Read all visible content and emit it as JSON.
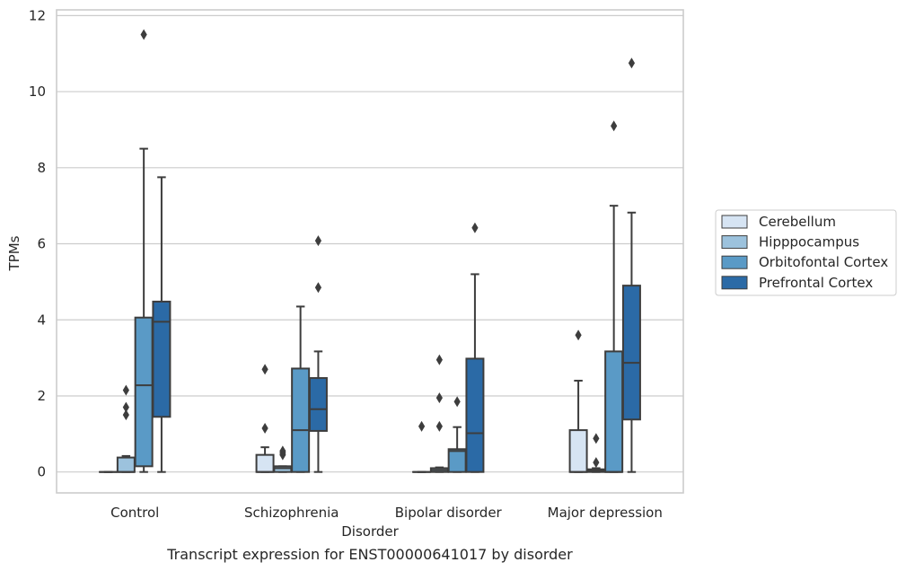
{
  "chart_data": {
    "type": "boxplot",
    "title": "",
    "caption": "Transcript expression for ENST00000641017 by disorder",
    "xlabel": "Disorder",
    "ylabel": "TPMs",
    "ylim": [
      -0.55,
      12.15
    ],
    "yticks": [
      0,
      2,
      4,
      6,
      8,
      10,
      12
    ],
    "grid": "horizontal",
    "legend_position": "right",
    "categories": [
      "Control",
      "Schizophrenia",
      "Bipolar disorder",
      "Major depression"
    ],
    "series": [
      {
        "name": "Cerebellum",
        "color": "#d6e4f3",
        "boxes": [
          {
            "q1": 0,
            "median": 0,
            "q3": 0,
            "whisker_low": 0,
            "whisker_high": 0,
            "outliers": []
          },
          {
            "q1": 0,
            "median": 0,
            "q3": 0.45,
            "whisker_low": 0,
            "whisker_high": 0.65,
            "outliers": [
              1.15,
              2.7
            ]
          },
          {
            "q1": 0,
            "median": 0,
            "q3": 0,
            "whisker_low": 0,
            "whisker_high": 0,
            "outliers": [
              1.2
            ]
          },
          {
            "q1": 0,
            "median": 0,
            "q3": 1.1,
            "whisker_low": 0,
            "whisker_high": 2.4,
            "outliers": [
              3.6
            ]
          }
        ]
      },
      {
        "name": "Hipppocampus",
        "color": "#9cc2dd",
        "boxes": [
          {
            "q1": 0,
            "median": 0,
            "q3": 0.38,
            "whisker_low": 0,
            "whisker_high": 0.42,
            "outliers": [
              1.5,
              1.7,
              2.15
            ]
          },
          {
            "q1": 0,
            "median": 0.1,
            "q3": 0.15,
            "whisker_low": 0,
            "whisker_high": 0.15,
            "outliers": [
              0.45,
              0.5,
              0.55
            ]
          },
          {
            "q1": 0,
            "median": 0.05,
            "q3": 0.1,
            "whisker_low": 0,
            "whisker_high": 0.12,
            "outliers": [
              1.2,
              1.95,
              2.95
            ]
          },
          {
            "q1": 0,
            "median": 0.03,
            "q3": 0.07,
            "whisker_low": 0,
            "whisker_high": 0.1,
            "outliers": [
              0.25,
              0.88
            ]
          }
        ]
      },
      {
        "name": "Orbitofontal Cortex",
        "color": "#5a9ac6",
        "boxes": [
          {
            "q1": 0.15,
            "median": 2.28,
            "q3": 4.06,
            "whisker_low": 0,
            "whisker_high": 8.5,
            "outliers": [
              11.5
            ]
          },
          {
            "q1": 0,
            "median": 1.1,
            "q3": 2.72,
            "whisker_low": 0,
            "whisker_high": 4.35,
            "outliers": []
          },
          {
            "q1": 0,
            "median": 0.55,
            "q3": 0.6,
            "whisker_low": 0,
            "whisker_high": 1.18,
            "outliers": [
              1.85
            ]
          },
          {
            "q1": 0,
            "median": 0,
            "q3": 3.17,
            "whisker_low": 0,
            "whisker_high": 7.0,
            "outliers": [
              9.1
            ]
          }
        ]
      },
      {
        "name": "Prefrontal Cortex",
        "color": "#2b6aa6",
        "boxes": [
          {
            "q1": 1.45,
            "median": 3.95,
            "q3": 4.48,
            "whisker_low": 0,
            "whisker_high": 7.75,
            "outliers": []
          },
          {
            "q1": 1.08,
            "median": 1.65,
            "q3": 2.47,
            "whisker_low": 0,
            "whisker_high": 3.17,
            "outliers": [
              4.85,
              6.08
            ]
          },
          {
            "q1": 0,
            "median": 1.02,
            "q3": 2.98,
            "whisker_low": 0,
            "whisker_high": 5.2,
            "outliers": [
              6.42
            ]
          },
          {
            "q1": 1.38,
            "median": 2.87,
            "q3": 4.9,
            "whisker_low": 0,
            "whisker_high": 6.82,
            "outliers": [
              10.75
            ]
          }
        ]
      }
    ]
  }
}
